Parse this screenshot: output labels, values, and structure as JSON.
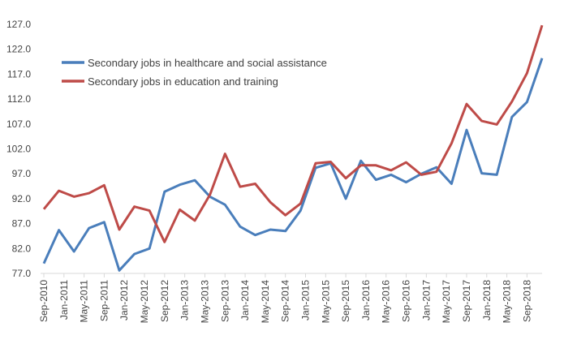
{
  "chart_data": {
    "type": "line",
    "title": "",
    "xlabel": "",
    "ylabel": "",
    "ylim": [
      77.0,
      127.0
    ],
    "yticks": [
      "77.0",
      "82.0",
      "87.0",
      "92.0",
      "97.0",
      "102.0",
      "107.0",
      "112.0",
      "117.0",
      "122.0",
      "127.0"
    ],
    "grid": false,
    "legend_position": "top-left",
    "x": [
      "Sep-2010",
      "Nov-2010",
      "Jan-2011",
      "Mar-2011",
      "May-2011",
      "Jul-2011",
      "Sep-2011",
      "Nov-2011",
      "Jan-2012",
      "Mar-2012",
      "May-2012",
      "Jul-2012",
      "Sep-2012",
      "Nov-2012",
      "Jan-2013",
      "Mar-2013",
      "May-2013",
      "Jul-2013",
      "Sep-2013",
      "Nov-2013",
      "Jan-2014",
      "Mar-2014",
      "May-2014",
      "Jul-2014",
      "Sep-2014",
      "Nov-2014",
      "Jan-2015",
      "Mar-2015",
      "May-2015",
      "Jul-2015",
      "Sep-2015",
      "Nov-2015",
      "Jan-2016",
      "Mar-2016",
      "May-2016",
      "Jul-2016",
      "Sep-2016",
      "Nov-2016",
      "Jan-2017",
      "Mar-2017",
      "May-2017",
      "Jul-2017",
      "Sep-2017",
      "Nov-2017",
      "Jan-2018",
      "Mar-2018",
      "May-2018",
      "Jul-2018",
      "Sep-2018",
      "Nov-2018"
    ],
    "x_tick_labels": [
      "Sep-2010",
      "Jan-2011",
      "May-2011",
      "Sep-2011",
      "Jan-2012",
      "May-2012",
      "Sep-2012",
      "Jan-2013",
      "May-2013",
      "Sep-2013",
      "Jan-2014",
      "May-2014",
      "Sep-2014",
      "Jan-2015",
      "May-2015",
      "Sep-2015",
      "Jan-2016",
      "May-2016",
      "Sep-2016",
      "Jan-2017",
      "May-2017",
      "Sep-2017",
      "Jan-2018",
      "May-2018",
      "Sep-2018"
    ],
    "series": [
      {
        "name": "Secondary jobs in healthcare and social assistance",
        "color": "#4a7ebb",
        "x": [
          "Sep-2010",
          "Dec-2010",
          "Mar-2011",
          "Jun-2011",
          "Sep-2011",
          "Dec-2011",
          "Mar-2012",
          "Jun-2012",
          "Sep-2012",
          "Dec-2012",
          "Mar-2013",
          "Jun-2013",
          "Sep-2013",
          "Dec-2013",
          "Mar-2014",
          "Jun-2014",
          "Sep-2014",
          "Dec-2014",
          "Mar-2015",
          "Jun-2015",
          "Sep-2015",
          "Dec-2015",
          "Mar-2016",
          "Jun-2016",
          "Sep-2016",
          "Dec-2016",
          "Mar-2017",
          "Jun-2017",
          "Sep-2017",
          "Dec-2017",
          "Mar-2018",
          "Jun-2018",
          "Sep-2018",
          "Dec-2018"
        ],
        "values": [
          79.0,
          85.7,
          81.4,
          86.1,
          87.3,
          77.6,
          80.9,
          82.0,
          93.4,
          94.8,
          95.7,
          92.4,
          90.8,
          86.4,
          84.7,
          85.8,
          85.5,
          89.6,
          98.2,
          99.1,
          92.0,
          99.6,
          95.8,
          96.8,
          95.3,
          97.0,
          98.3,
          95.0,
          105.8,
          97.1,
          96.8,
          108.4,
          111.4,
          120.2
        ]
      },
      {
        "name": "Secondary jobs in education and training",
        "color": "#be4b48",
        "x": [
          "Sep-2010",
          "Dec-2010",
          "Mar-2011",
          "Jun-2011",
          "Sep-2011",
          "Dec-2011",
          "Mar-2012",
          "Jun-2012",
          "Sep-2012",
          "Dec-2012",
          "Mar-2013",
          "Jun-2013",
          "Sep-2013",
          "Dec-2013",
          "Mar-2014",
          "Jun-2014",
          "Sep-2014",
          "Dec-2014",
          "Mar-2015",
          "Jun-2015",
          "Sep-2015",
          "Dec-2015",
          "Mar-2016",
          "Jun-2016",
          "Sep-2016",
          "Dec-2016",
          "Mar-2017",
          "Jun-2017",
          "Sep-2017",
          "Dec-2017",
          "Mar-2018",
          "Jun-2018",
          "Sep-2018",
          "Dec-2018"
        ],
        "values": [
          89.9,
          93.6,
          92.4,
          93.1,
          94.7,
          85.8,
          90.4,
          89.6,
          83.3,
          89.8,
          87.6,
          92.8,
          101.0,
          94.4,
          95.0,
          91.3,
          88.7,
          91.0,
          99.1,
          99.4,
          96.1,
          98.7,
          98.7,
          97.7,
          99.3,
          96.8,
          97.4,
          103.1,
          111.0,
          107.6,
          106.9,
          111.5,
          117.2,
          126.8
        ]
      }
    ]
  }
}
